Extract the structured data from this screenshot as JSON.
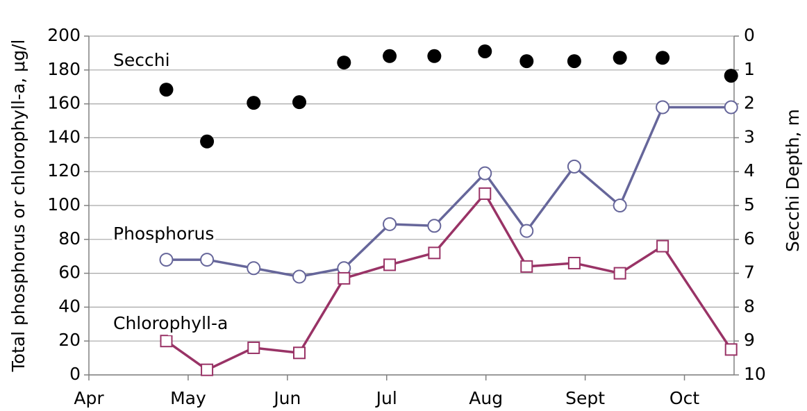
{
  "chart_data": {
    "type": "line",
    "ylabel": "Total phosphorus or chlorophyll-a, μg/l",
    "y2label": "Secchi Depth, m",
    "x": [
      0.78,
      1.19,
      1.66,
      2.12,
      2.57,
      3.03,
      3.48,
      3.99,
      4.41,
      4.89,
      5.35,
      5.78,
      6.47
    ],
    "xlim": [
      0,
      6.5
    ],
    "xticks": [
      {
        "value": 0,
        "label": "Apr"
      },
      {
        "value": 1,
        "label": "May"
      },
      {
        "value": 2,
        "label": "Jun"
      },
      {
        "value": 3,
        "label": "Jul"
      },
      {
        "value": 4,
        "label": "Aug"
      },
      {
        "value": 5,
        "label": "Sept"
      },
      {
        "value": 6,
        "label": "Oct"
      }
    ],
    "ylim": [
      0,
      200
    ],
    "yticks": [
      0,
      20,
      40,
      60,
      80,
      100,
      120,
      140,
      160,
      180,
      200
    ],
    "y2lim": [
      10,
      0
    ],
    "y2ticks": [
      0,
      1,
      2,
      3,
      4,
      5,
      6,
      7,
      8,
      9,
      10
    ],
    "grid": true,
    "series": [
      {
        "name": "Secchi",
        "color": "#000000",
        "axis": "y2",
        "marker": "filled-circle",
        "line": false,
        "values": [
          1.58,
          3.11,
          1.97,
          1.95,
          0.78,
          0.59,
          0.59,
          0.45,
          0.74,
          0.74,
          0.64,
          0.64,
          1.17
        ]
      },
      {
        "name": "Phosphorus",
        "color": "#66669a",
        "marker": "open-circle",
        "line": true,
        "values": [
          68,
          68,
          63,
          58,
          63,
          89,
          88,
          119,
          85,
          123,
          100,
          158,
          158
        ]
      },
      {
        "name": "Chlorophyll-a",
        "color": "#993366",
        "marker": "open-square",
        "line": true,
        "values": [
          20,
          3,
          16,
          13,
          57,
          65,
          72,
          107,
          64,
          66,
          60,
          76,
          15
        ]
      }
    ]
  }
}
